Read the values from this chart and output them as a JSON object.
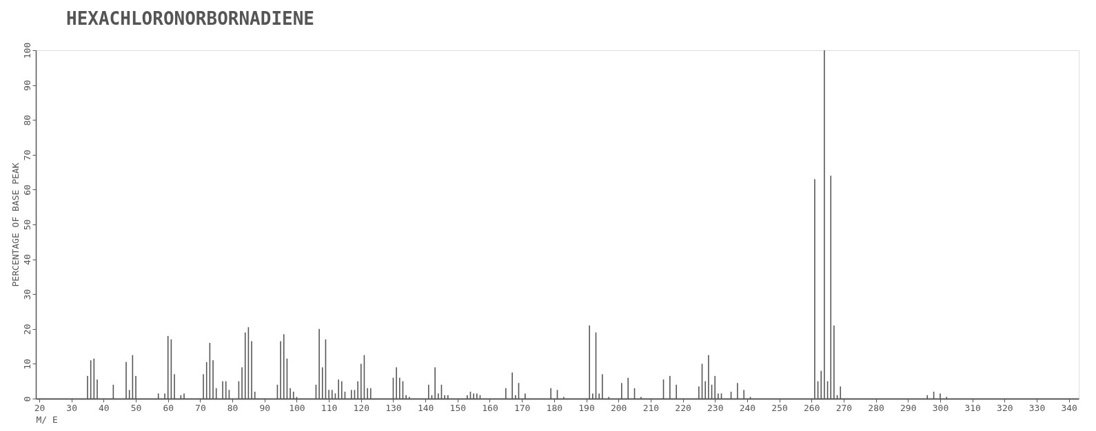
{
  "chart_data": {
    "type": "bar",
    "title": "HEXACHLORONORBORNADIENE",
    "xlabel": "M/ E",
    "ylabel": "PERCENTAGE OF BASE PEAK",
    "x": [
      35,
      36,
      37,
      38,
      43,
      47,
      48,
      49,
      50,
      57,
      59,
      60,
      61,
      62,
      64,
      65,
      71,
      72,
      73,
      74,
      75,
      77,
      78,
      79,
      82,
      83,
      84,
      85,
      86,
      87,
      94,
      95,
      96,
      97,
      98,
      99,
      100,
      106,
      107,
      108,
      109,
      110,
      111,
      112,
      113,
      114,
      115,
      117,
      118,
      119,
      120,
      121,
      122,
      123,
      130,
      131,
      132,
      133,
      134,
      135,
      141,
      142,
      143,
      144,
      145,
      146,
      147,
      153,
      154,
      155,
      156,
      157,
      165,
      167,
      168,
      169,
      171,
      179,
      181,
      183,
      191,
      192,
      193,
      194,
      195,
      197,
      201,
      203,
      205,
      207,
      214,
      216,
      218,
      225,
      226,
      227,
      228,
      229,
      230,
      231,
      232,
      235,
      237,
      239,
      241,
      261,
      262,
      263,
      264,
      265,
      266,
      267,
      268,
      269,
      296,
      298,
      300,
      302
    ],
    "values": [
      6.5,
      11,
      11.5,
      5.5,
      4,
      10.5,
      2.5,
      12.5,
      6.5,
      1.5,
      1.5,
      18,
      17,
      7,
      1,
      1.5,
      7,
      10.5,
      16,
      11,
      3,
      5,
      5,
      2.5,
      5,
      9,
      19,
      20.5,
      16.5,
      2,
      4,
      16.5,
      18.5,
      11.5,
      3,
      2,
      0.5,
      4,
      20,
      9,
      17,
      2.5,
      2.5,
      1.5,
      5.5,
      5,
      2,
      2.5,
      2.5,
      5,
      10,
      12.5,
      3,
      3,
      6,
      9,
      6,
      5,
      1,
      0.5,
      4,
      1,
      9,
      1.5,
      4,
      1,
      1,
      1,
      2,
      1.5,
      1.5,
      1,
      3,
      7.5,
      1,
      4.5,
      1.5,
      3,
      2.5,
      0.5,
      21,
      1.5,
      19,
      1.5,
      7,
      0.5,
      4.5,
      6,
      3,
      0.5,
      5.5,
      6.5,
      4,
      3.5,
      10,
      5,
      12.5,
      4,
      6.5,
      1.5,
      1.5,
      2,
      4.5,
      2.5,
      0.5,
      63,
      5,
      8,
      100,
      5,
      64,
      21,
      1,
      3.5,
      1,
      2,
      1.5,
      0.5
    ],
    "color": "#555555",
    "xlim": [
      20,
      342
    ],
    "xticks": [
      20,
      30,
      40,
      50,
      60,
      70,
      80,
      90,
      100,
      110,
      120,
      130,
      140,
      150,
      160,
      170,
      180,
      190,
      200,
      210,
      220,
      230,
      240,
      250,
      260,
      270,
      280,
      290,
      300,
      310,
      320,
      330,
      340
    ],
    "ylim": [
      0,
      100
    ],
    "yticks": [
      0,
      10,
      20,
      30,
      40,
      50,
      60,
      70,
      80,
      90,
      100
    ],
    "grid": false
  }
}
